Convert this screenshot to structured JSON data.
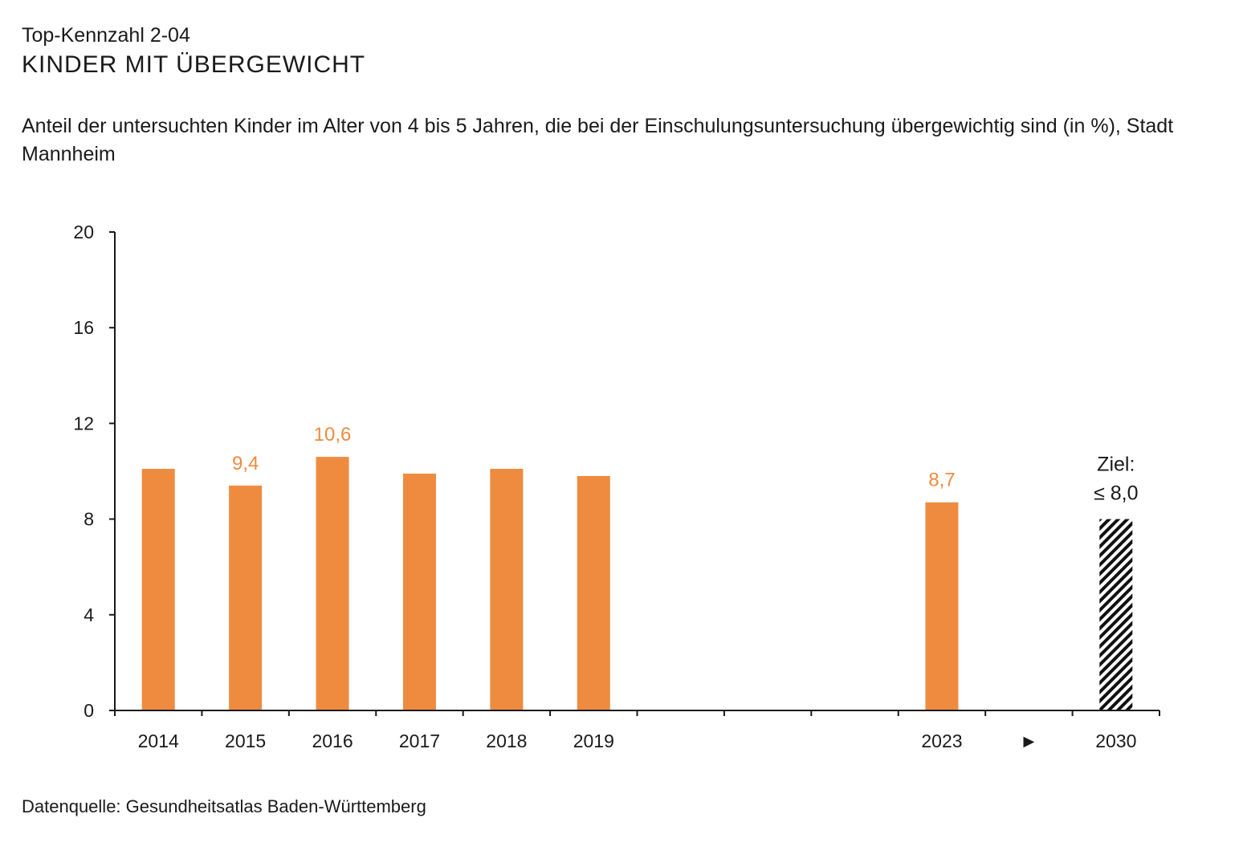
{
  "header": {
    "kicker": "Top-Kennzahl 2-04",
    "title": "KINDER MIT ÜBERGEWICHT",
    "subtitle": "Anteil der untersuchten Kinder im Alter von 4 bis 5 Jahren, die bei der Einschulungsuntersuchung übergewichtig sind (in %), Stadt Mannheim"
  },
  "footer": {
    "source": "Datenquelle: Gesundheitsatlas Baden-Württemberg"
  },
  "colors": {
    "accent": "#ef8b3f",
    "axis": "#1a1a1a",
    "target_pattern": "#111111"
  },
  "chart_data": {
    "type": "bar",
    "title": "",
    "xlabel": "",
    "ylabel": "",
    "ylim": [
      0,
      20
    ],
    "yticks": [
      "0",
      "4",
      "8",
      "12",
      "16",
      "20"
    ],
    "categories": [
      "2014",
      "2015",
      "2016",
      "2017",
      "2018",
      "2019",
      "",
      "",
      "",
      "2023",
      "►",
      "2030"
    ],
    "values": [
      10.1,
      9.4,
      10.6,
      9.9,
      10.1,
      9.8,
      null,
      null,
      null,
      8.7,
      null,
      8.0
    ],
    "data_labels": [
      "",
      "9,4",
      "10,6",
      "",
      "",
      "",
      "",
      "",
      "",
      "8,7",
      "",
      ""
    ],
    "target": {
      "category": "2030",
      "value": 8.0,
      "label_line1": "Ziel:",
      "label_line2": "≤ 8,0",
      "style": "hatched"
    }
  }
}
